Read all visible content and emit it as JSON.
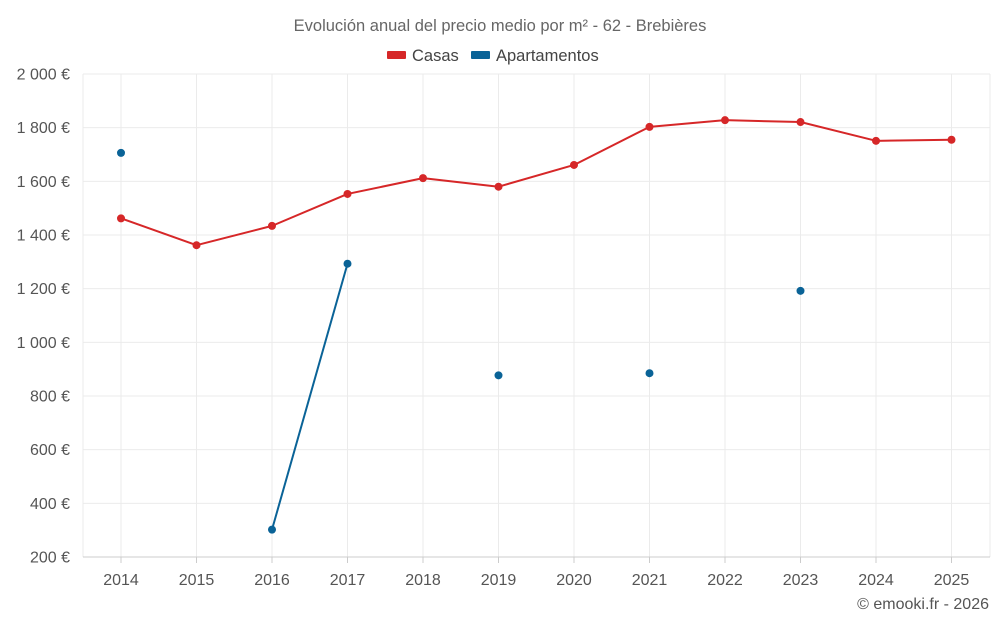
{
  "chart_data": {
    "type": "line",
    "title": "Evolución anual del precio medio por m² - 62 - Brebières",
    "categories": [
      "2014",
      "2015",
      "2016",
      "2017",
      "2018",
      "2019",
      "2020",
      "2021",
      "2022",
      "2023",
      "2024",
      "2025"
    ],
    "ylim": [
      200,
      2000
    ],
    "yticks": [
      200,
      400,
      600,
      800,
      1000,
      1200,
      1400,
      1600,
      1800,
      2000
    ],
    "ytick_labels": [
      "200 €",
      "400 €",
      "600 €",
      "800 €",
      "1 000 €",
      "1 200 €",
      "1 400 €",
      "1 600 €",
      "1 800 €",
      "2 000 €"
    ],
    "grid": true,
    "legend_position": "top-center",
    "series": [
      {
        "name": "Casas",
        "color": "#d62728",
        "values": [
          1462,
          1362,
          1434,
          1553,
          1612,
          1580,
          1661,
          1803,
          1828,
          1821,
          1751,
          1755
        ]
      },
      {
        "name": "Apartamentos",
        "color": "#0a6397",
        "values": [
          1706,
          null,
          302,
          1293,
          null,
          877,
          null,
          885,
          null,
          1192,
          null,
          null
        ]
      }
    ]
  },
  "credit": "© emooki.fr - 2026"
}
